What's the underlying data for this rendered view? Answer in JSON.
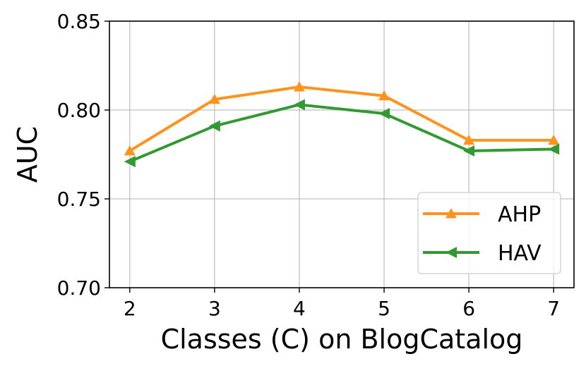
{
  "chart_data": {
    "type": "line",
    "x_label": "Classes (C) on BlogCatalog",
    "y_label": "AUC",
    "x": [
      2,
      3,
      4,
      5,
      6,
      7
    ],
    "series": [
      {
        "name": "AHP",
        "color": "#ff931e",
        "marker": "triangle-up",
        "values": [
          0.777,
          0.806,
          0.813,
          0.808,
          0.783,
          0.783
        ]
      },
      {
        "name": "HAV",
        "color": "#339933",
        "marker": "triangle-left",
        "values": [
          0.771,
          0.791,
          0.803,
          0.798,
          0.777,
          0.778
        ]
      }
    ],
    "xlim": [
      1.76,
      7.24
    ],
    "xticks": [
      2,
      3,
      4,
      5,
      6,
      7
    ],
    "ylim": [
      0.7,
      0.85
    ],
    "yticks": [
      {
        "value": 0.7,
        "label": "0.70"
      },
      0.75,
      {
        "value": 0.8,
        "label": "0.80"
      },
      0.85
    ],
    "grid": true,
    "legend": "lower right"
  }
}
